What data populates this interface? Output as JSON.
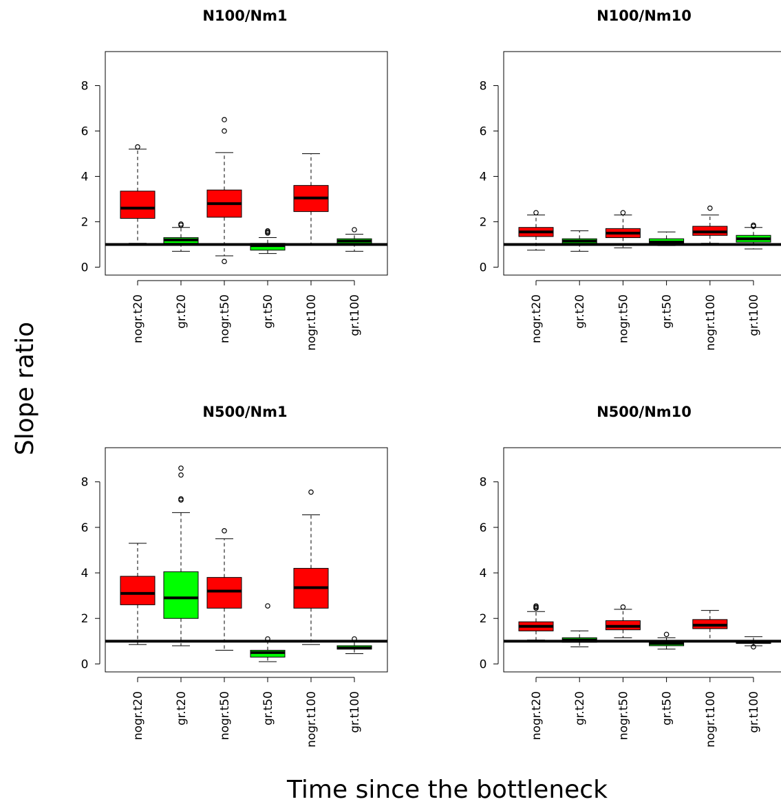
{
  "figure": {
    "ylabel": "Slope ratio",
    "xlabel": "Time since the bottleneck"
  },
  "colors": {
    "nogr": "#ff0000",
    "gr": "#00ff00",
    "line": "#000000"
  },
  "chart_data": [
    {
      "type": "box",
      "title": "N100/Nm1",
      "categories": [
        "nogr.t20",
        "gr.t20",
        "nogr.t50",
        "gr.t50",
        "nogr.t100",
        "gr.t100"
      ],
      "yticks": [
        0,
        2,
        4,
        6,
        8
      ],
      "ylim": [
        -0.35,
        9.5
      ],
      "reference_line": 1,
      "boxes": [
        {
          "color": "nogr",
          "min": 1.05,
          "q1": 2.15,
          "median": 2.6,
          "q3": 3.35,
          "max": 5.2,
          "outliers": [
            5.3
          ]
        },
        {
          "color": "gr",
          "min": 0.7,
          "q1": 1.05,
          "median": 1.2,
          "q3": 1.3,
          "max": 1.75,
          "outliers": [
            1.85,
            1.9
          ]
        },
        {
          "color": "nogr",
          "min": 0.5,
          "q1": 2.2,
          "median": 2.8,
          "q3": 3.4,
          "max": 5.05,
          "outliers": [
            6.5,
            6.0,
            0.25
          ]
        },
        {
          "color": "gr",
          "min": 0.6,
          "q1": 0.75,
          "median": 0.95,
          "q3": 1.05,
          "max": 1.3,
          "outliers": [
            1.5,
            1.55,
            1.6
          ]
        },
        {
          "color": "nogr",
          "min": 0.98,
          "q1": 2.45,
          "median": 3.05,
          "q3": 3.6,
          "max": 5.0,
          "outliers": []
        },
        {
          "color": "gr",
          "min": 0.7,
          "q1": 1.05,
          "median": 1.15,
          "q3": 1.25,
          "max": 1.45,
          "outliers": [
            1.65
          ]
        }
      ]
    },
    {
      "type": "box",
      "title": "N100/Nm10",
      "categories": [
        "nogr.t20",
        "gr.t20",
        "nogr.t50",
        "gr.t50",
        "nogr.t100",
        "gr.t100"
      ],
      "yticks": [
        0,
        2,
        4,
        6,
        8
      ],
      "ylim": [
        -0.35,
        9.5
      ],
      "reference_line": 1,
      "boxes": [
        {
          "color": "nogr",
          "min": 0.75,
          "q1": 1.35,
          "median": 1.55,
          "q3": 1.75,
          "max": 2.3,
          "outliers": [
            2.4
          ]
        },
        {
          "color": "gr",
          "min": 0.7,
          "q1": 1.05,
          "median": 1.15,
          "q3": 1.25,
          "max": 1.6,
          "outliers": []
        },
        {
          "color": "nogr",
          "min": 0.85,
          "q1": 1.3,
          "median": 1.5,
          "q3": 1.7,
          "max": 2.3,
          "outliers": [
            2.4
          ]
        },
        {
          "color": "gr",
          "min": 0.95,
          "q1": 1.0,
          "median": 1.1,
          "q3": 1.25,
          "max": 1.55,
          "outliers": []
        },
        {
          "color": "nogr",
          "min": 1.05,
          "q1": 1.4,
          "median": 1.55,
          "q3": 1.8,
          "max": 2.3,
          "outliers": [
            2.6
          ]
        },
        {
          "color": "gr",
          "min": 0.8,
          "q1": 1.1,
          "median": 1.25,
          "q3": 1.4,
          "max": 1.75,
          "outliers": [
            1.8,
            1.85
          ]
        }
      ]
    },
    {
      "type": "box",
      "title": "N500/Nm1",
      "categories": [
        "nogr.t20",
        "gr.t20",
        "nogr.t50",
        "gr.t50",
        "nogr.t100",
        "gr.t100"
      ],
      "yticks": [
        0,
        2,
        4,
        6,
        8
      ],
      "ylim": [
        -0.35,
        9.5
      ],
      "reference_line": 1,
      "boxes": [
        {
          "color": "nogr",
          "min": 0.85,
          "q1": 2.6,
          "median": 3.1,
          "q3": 3.85,
          "max": 5.3,
          "outliers": []
        },
        {
          "color": "gr",
          "min": 0.8,
          "q1": 2.0,
          "median": 2.9,
          "q3": 4.05,
          "max": 6.65,
          "outliers": [
            8.6,
            8.3,
            7.2,
            7.25
          ]
        },
        {
          "color": "nogr",
          "min": 0.6,
          "q1": 2.45,
          "median": 3.2,
          "q3": 3.8,
          "max": 5.5,
          "outliers": [
            5.85
          ]
        },
        {
          "color": "gr",
          "min": 0.1,
          "q1": 0.3,
          "median": 0.5,
          "q3": 0.6,
          "max": 1.0,
          "outliers": [
            1.1,
            2.55
          ]
        },
        {
          "color": "nogr",
          "min": 0.85,
          "q1": 2.45,
          "median": 3.35,
          "q3": 4.2,
          "max": 6.55,
          "outliers": [
            7.55
          ]
        },
        {
          "color": "gr",
          "min": 0.45,
          "q1": 0.65,
          "median": 0.7,
          "q3": 0.8,
          "max": 1.0,
          "outliers": [
            1.1
          ]
        }
      ]
    },
    {
      "type": "box",
      "title": "N500/Nm10",
      "categories": [
        "nogr.t20",
        "gr.t20",
        "nogr.t50",
        "gr.t50",
        "nogr.t100",
        "gr.t100"
      ],
      "yticks": [
        0,
        2,
        4,
        6,
        8
      ],
      "ylim": [
        -0.35,
        9.5
      ],
      "reference_line": 1,
      "boxes": [
        {
          "color": "nogr",
          "min": 1.05,
          "q1": 1.45,
          "median": 1.65,
          "q3": 1.85,
          "max": 2.3,
          "outliers": [
            2.45,
            2.5,
            2.55
          ]
        },
        {
          "color": "gr",
          "min": 0.75,
          "q1": 0.95,
          "median": 1.05,
          "q3": 1.15,
          "max": 1.45,
          "outliers": []
        },
        {
          "color": "nogr",
          "min": 1.15,
          "q1": 1.5,
          "median": 1.65,
          "q3": 1.9,
          "max": 2.4,
          "outliers": [
            2.5
          ]
        },
        {
          "color": "gr",
          "min": 0.65,
          "q1": 0.8,
          "median": 0.9,
          "q3": 1.0,
          "max": 1.15,
          "outliers": [
            1.3
          ]
        },
        {
          "color": "nogr",
          "min": 1.0,
          "q1": 1.55,
          "median": 1.7,
          "q3": 1.95,
          "max": 2.35,
          "outliers": []
        },
        {
          "color": "gr",
          "min": 0.8,
          "q1": 0.9,
          "median": 0.95,
          "q3": 1.0,
          "max": 1.2,
          "outliers": [
            0.75
          ]
        }
      ]
    }
  ]
}
